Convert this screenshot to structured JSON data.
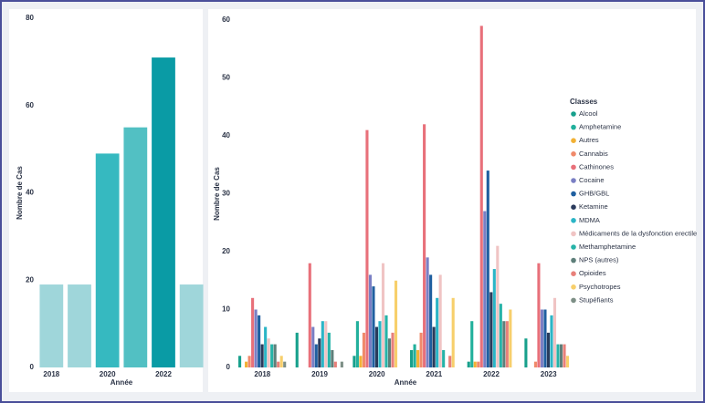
{
  "chart_data": [
    {
      "type": "bar",
      "ylabel": "Nombre de Cas",
      "xlabel": "Année",
      "categories": [
        "2018",
        null,
        "2020",
        null,
        "2022",
        null
      ],
      "values": [
        19,
        19,
        49,
        55,
        71,
        19
      ],
      "colors": [
        "#9fd6da",
        "#9fd6da",
        "#36b9c0",
        "#52c0c3",
        "#0a9ba5",
        "#9fd6da"
      ],
      "ylim": [
        0,
        80
      ],
      "yticks": [
        0,
        20,
        40,
        60,
        80
      ]
    },
    {
      "type": "grouped_bar",
      "ylabel": "Nombre de Cas",
      "xlabel": "Année",
      "legend_title": "Classes",
      "categories": [
        "2018",
        "2019",
        "2020",
        "2021",
        "2022",
        "2023"
      ],
      "ylim": [
        0,
        60
      ],
      "yticks": [
        0,
        10,
        20,
        30,
        40,
        50,
        60
      ],
      "series": [
        {
          "name": "Alcool",
          "color": "#17a08c",
          "values": [
            2,
            6,
            2,
            3,
            1,
            5
          ]
        },
        {
          "name": "Amphetamine",
          "color": "#22b09c",
          "values": [
            0,
            0,
            8,
            4,
            8,
            0
          ]
        },
        {
          "name": "Autres",
          "color": "#f2b134",
          "values": [
            1,
            0,
            2,
            3,
            1,
            0
          ]
        },
        {
          "name": "Cannabis",
          "color": "#f08a6b",
          "values": [
            2,
            0,
            6,
            6,
            1,
            1
          ]
        },
        {
          "name": "Cathinones",
          "color": "#e8707a",
          "values": [
            12,
            18,
            41,
            42,
            59,
            18
          ]
        },
        {
          "name": "Cocaine",
          "color": "#7a7fc4",
          "values": [
            10,
            7,
            16,
            19,
            27,
            10
          ]
        },
        {
          "name": "GHB/GBL",
          "color": "#1f5fa0",
          "values": [
            9,
            4,
            14,
            16,
            34,
            10
          ]
        },
        {
          "name": "Ketamine",
          "color": "#2a3b5c",
          "values": [
            4,
            5,
            7,
            7,
            13,
            6
          ]
        },
        {
          "name": "MDMA",
          "color": "#2bb5c6",
          "values": [
            7,
            8,
            8,
            12,
            17,
            9
          ]
        },
        {
          "name": "Médicaments de la dysfonction erectile",
          "color": "#f0c4c4",
          "values": [
            5,
            8,
            18,
            16,
            21,
            12
          ]
        },
        {
          "name": "Methamphetamine",
          "color": "#26b3a8",
          "values": [
            4,
            6,
            9,
            3,
            11,
            4
          ]
        },
        {
          "name": "NPS (autres)",
          "color": "#5e7f7a",
          "values": [
            4,
            3,
            5,
            0,
            8,
            4
          ]
        },
        {
          "name": "Opioides",
          "color": "#e8807a",
          "values": [
            1,
            1,
            6,
            2,
            8,
            4
          ]
        },
        {
          "name": "Psychotropes",
          "color": "#f7cf6b",
          "values": [
            2,
            0,
            15,
            12,
            10,
            2
          ]
        },
        {
          "name": "Stupéfiants",
          "color": "#7d8f86",
          "values": [
            1,
            1,
            0,
            0,
            0,
            0
          ]
        }
      ]
    }
  ]
}
